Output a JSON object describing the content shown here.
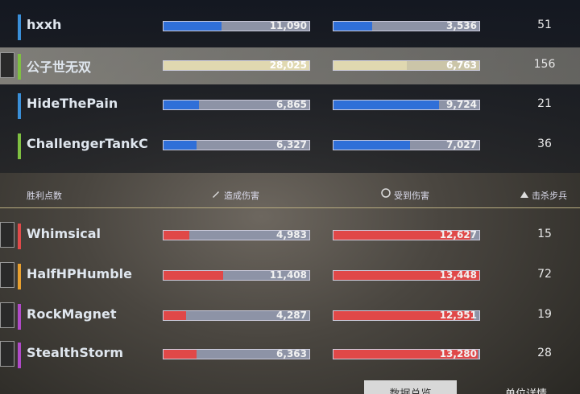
{
  "team_a": {
    "players": [
      {
        "name": "hxxh",
        "accent": "#3a8fd8",
        "damage_dealt": {
          "value": 11090,
          "label": "11,090"
        },
        "damage_taken": {
          "value": 3536,
          "label": "3,536"
        },
        "kills": 51
      },
      {
        "name": "公子世无双",
        "accent": "#7fc042",
        "highlighted": true,
        "damage_dealt": {
          "value": 28025,
          "label": "28,025"
        },
        "damage_taken": {
          "value": 6763,
          "label": "6,763"
        },
        "kills": 156
      },
      {
        "name": "HideThePain",
        "accent": "#3a8fd8",
        "damage_dealt": {
          "value": 6865,
          "label": "6,865"
        },
        "damage_taken": {
          "value": 9724,
          "label": "9,724"
        },
        "kills": 21
      },
      {
        "name": "ChallengerTankC",
        "accent": "#7fc042",
        "damage_dealt": {
          "value": 6327,
          "label": "6,327"
        },
        "damage_taken": {
          "value": 7027,
          "label": "7,027"
        },
        "kills": 36
      }
    ]
  },
  "headers": {
    "victory_points": "胜利点数",
    "damage_dealt": "造成伤害",
    "damage_taken": "受到伤害",
    "infantry_kills": "击杀步兵"
  },
  "team_b": {
    "players": [
      {
        "name": "Whimsical",
        "accent": "#e04a4a",
        "damage_dealt": {
          "value": 4983,
          "label": "4,983"
        },
        "damage_taken": {
          "value": 12627,
          "label": "12,627"
        },
        "kills": 15
      },
      {
        "name": "HalfHPHumble",
        "accent": "#e8a030",
        "damage_dealt": {
          "value": 11408,
          "label": "11,408"
        },
        "damage_taken": {
          "value": 13448,
          "label": "13,448"
        },
        "kills": 72
      },
      {
        "name": "RockMagnet",
        "accent": "#b04ac8",
        "damage_dealt": {
          "value": 4287,
          "label": "4,287"
        },
        "damage_taken": {
          "value": 12951,
          "label": "12,951"
        },
        "kills": 19
      },
      {
        "name": "StealthStorm",
        "accent": "#b04ac8",
        "damage_dealt": {
          "value": 6363,
          "label": "6,363"
        },
        "damage_taken": {
          "value": 13280,
          "label": "13,280"
        },
        "kills": 28
      }
    ]
  },
  "buttons": [
    "数据总览",
    "单位详情"
  ]
}
